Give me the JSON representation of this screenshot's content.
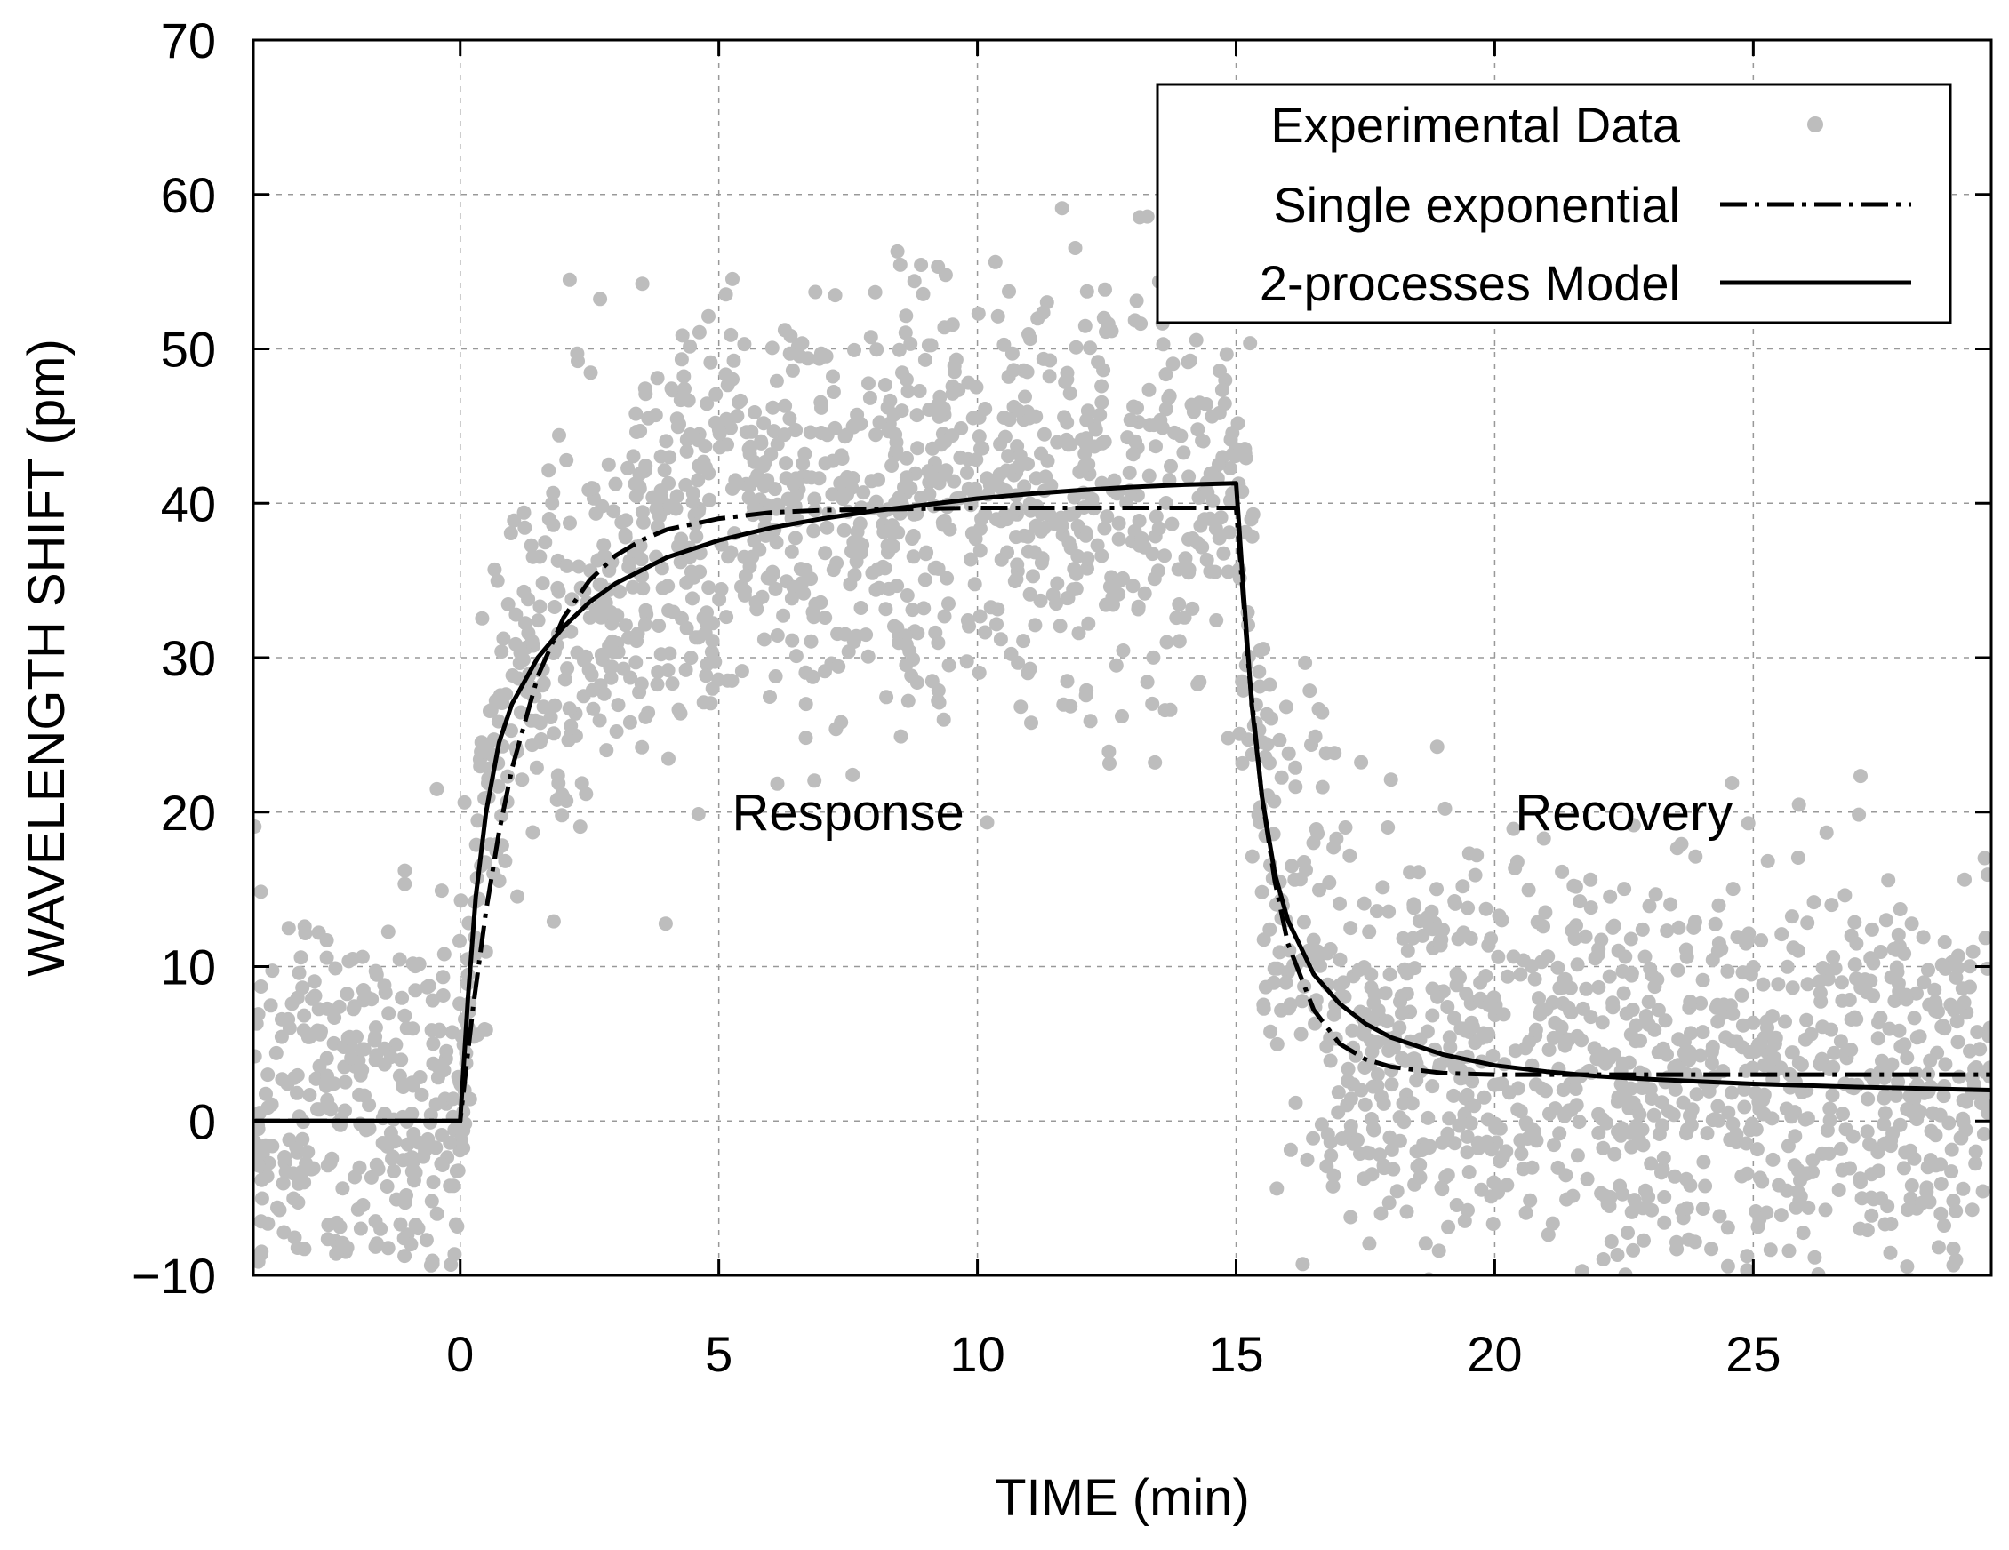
{
  "chart_data": {
    "type": "scatter",
    "title": "",
    "xlabel": "TIME (min)",
    "ylabel": "WAVELENGTH SHIFT (pm)",
    "xlim": [
      -4,
      29.6
    ],
    "ylim": [
      -10,
      70
    ],
    "xticks": [
      0,
      5,
      10,
      15,
      20,
      25
    ],
    "yticks": [
      -10,
      0,
      10,
      20,
      30,
      40,
      50,
      60,
      70
    ],
    "xtick_labels": [
      "0",
      "5",
      "10",
      "15",
      "20",
      "25"
    ],
    "ytick_labels": [
      "−10",
      "0",
      "10",
      "20",
      "30",
      "40",
      "50",
      "60",
      "70"
    ],
    "grid": true,
    "legend_position": "top-right",
    "legend": [
      {
        "label": "Experimental Data",
        "style": "points",
        "color": "#bdbdbd"
      },
      {
        "label": "Single exponential",
        "style": "dash-dot",
        "color": "#000000"
      },
      {
        "label": "2-processes Model",
        "style": "solid",
        "color": "#000000"
      }
    ],
    "annotations": [
      {
        "text": "Response",
        "x": 7.5,
        "y": 20
      },
      {
        "text": "Recovery",
        "x": 22.5,
        "y": 20
      }
    ],
    "series": [
      {
        "name": "Single exponential",
        "style": "dash-dot",
        "x": [
          -4,
          0,
          0.25,
          0.5,
          0.75,
          1,
          1.5,
          2,
          2.5,
          3,
          3.5,
          4,
          5,
          6,
          7,
          8,
          10,
          12,
          14,
          15,
          15.25,
          15.5,
          15.75,
          16,
          16.5,
          17,
          17.5,
          18,
          19,
          20,
          22,
          25,
          29.6
        ],
        "y": [
          0,
          0,
          7.4,
          13.6,
          18.7,
          22.8,
          28.8,
          32.6,
          35.0,
          36.6,
          37.6,
          38.3,
          39.0,
          39.4,
          39.55,
          39.6,
          39.7,
          39.7,
          39.7,
          39.7,
          29.0,
          21.0,
          15.5,
          11.5,
          7.2,
          5.0,
          4.0,
          3.5,
          3.1,
          3.0,
          3.0,
          3.0,
          3.0
        ]
      },
      {
        "name": "2-processes Model",
        "style": "solid",
        "x": [
          -4,
          0,
          0.15,
          0.3,
          0.5,
          0.75,
          1,
          1.5,
          2,
          2.5,
          3,
          4,
          5,
          6,
          7,
          8,
          9,
          10,
          11,
          12,
          13,
          14,
          15,
          15.15,
          15.3,
          15.5,
          15.75,
          16,
          16.5,
          17,
          17.5,
          18,
          19,
          20,
          21,
          22,
          23,
          25,
          27,
          29.6
        ],
        "y": [
          0,
          0,
          8.0,
          14.5,
          20.0,
          24.5,
          27.0,
          30.0,
          32.0,
          33.6,
          34.8,
          36.5,
          37.6,
          38.4,
          39.0,
          39.5,
          39.9,
          40.3,
          40.6,
          40.85,
          41.05,
          41.2,
          41.3,
          34.0,
          27.0,
          21.0,
          16.0,
          13.0,
          9.5,
          7.6,
          6.3,
          5.4,
          4.3,
          3.6,
          3.2,
          2.9,
          2.7,
          2.4,
          2.2,
          2.0
        ]
      }
    ],
    "scatter_spread": {
      "name": "Experimental Data",
      "approx_point_count": 2600,
      "noise_sd_pm": 7,
      "note": "grey points scattered around the 2-processes Model curve over the full time range"
    }
  }
}
